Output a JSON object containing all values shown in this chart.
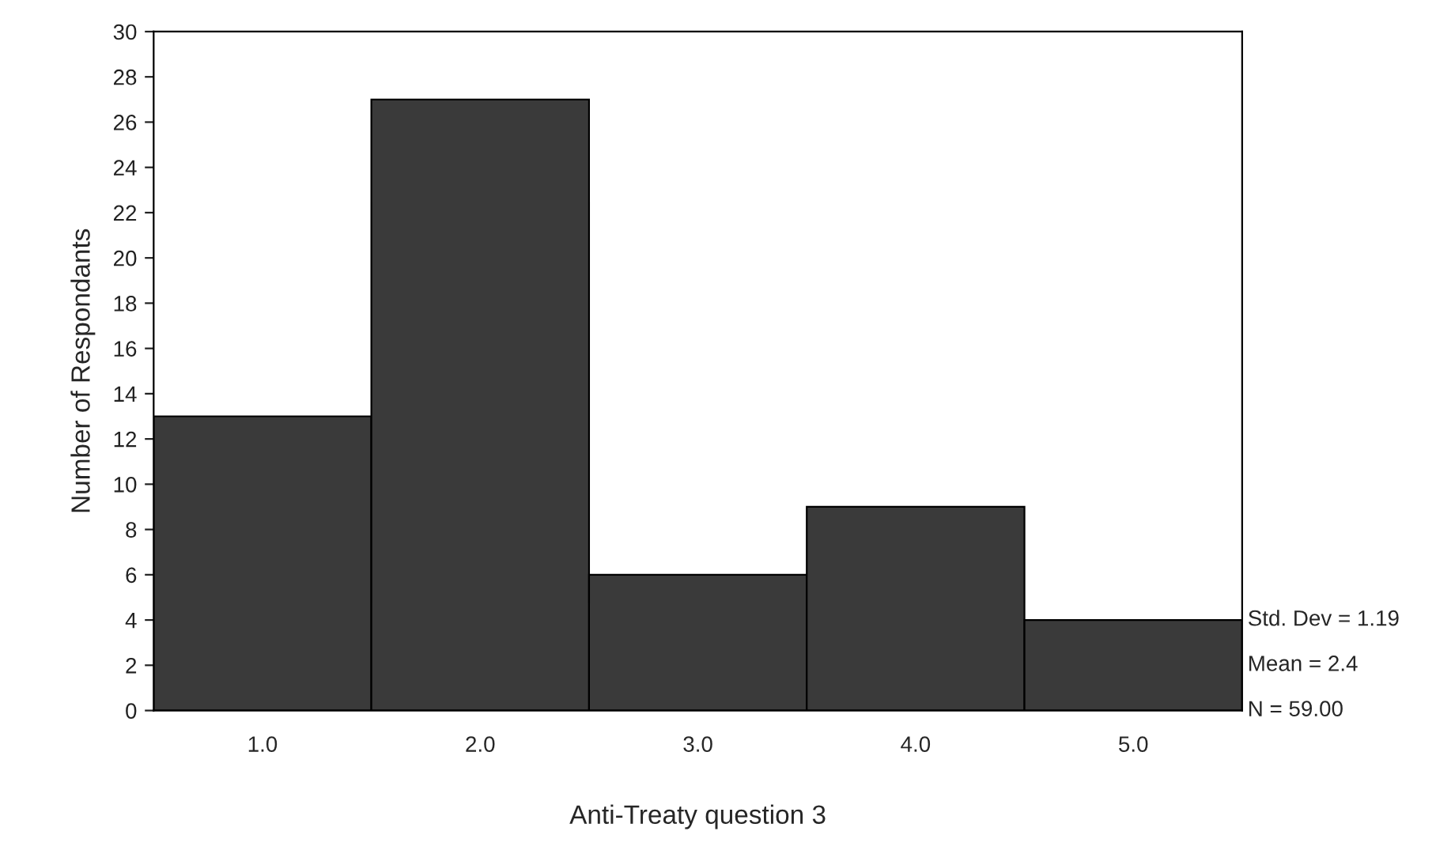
{
  "chart_data": {
    "type": "histogram",
    "xlabel": "Anti-Treaty question 3",
    "ylabel": "Number of Respondants",
    "bins": [
      0.5,
      1.5,
      2.5,
      3.5,
      4.5,
      5.5
    ],
    "values": [
      13,
      27,
      6,
      9,
      4
    ],
    "color": "#3a3a3a",
    "xlim": [
      0.5,
      5.5
    ],
    "ylim": [
      0,
      30
    ],
    "xticks": [
      {
        "value": 1,
        "label": "1.0"
      },
      {
        "value": 2,
        "label": "2.0"
      },
      {
        "value": 3,
        "label": "3.0"
      },
      {
        "value": 4,
        "label": "4.0"
      },
      {
        "value": 5,
        "label": "5.0"
      }
    ],
    "yticks": [
      0,
      2,
      4,
      6,
      8,
      10,
      12,
      14,
      16,
      18,
      20,
      22,
      24,
      26,
      28,
      30
    ],
    "annotations": [
      "Std. Dev = 1.19",
      "Mean = 2.4",
      "N = 59.00"
    ],
    "grid": false
  }
}
